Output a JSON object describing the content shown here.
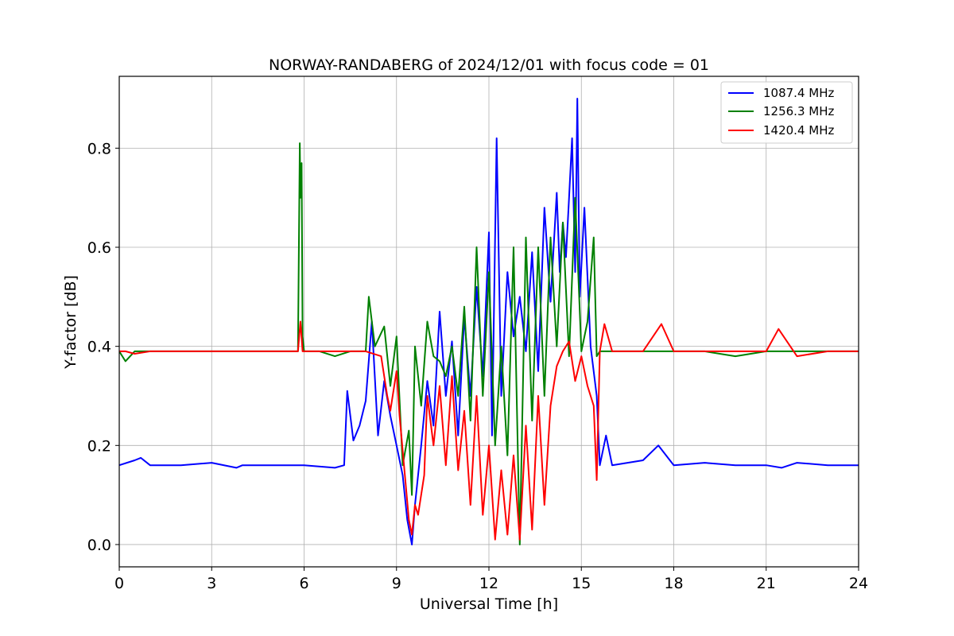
{
  "chart_data": {
    "type": "line",
    "title": "NORWAY-RANDABERG of 2024/12/01 with focus code = 01",
    "xlabel": "Universal Time [h]",
    "ylabel": "Y-factor [dB]",
    "xlim": [
      0,
      24
    ],
    "ylim": [
      -0.045,
      0.945
    ],
    "xticks": [
      0,
      3,
      6,
      9,
      12,
      15,
      18,
      21,
      24
    ],
    "xtick_labels": [
      "0",
      "3",
      "6",
      "9",
      "12",
      "15",
      "18",
      "21",
      "24"
    ],
    "yticks": [
      0.0,
      0.2,
      0.4,
      0.6,
      0.8
    ],
    "ytick_labels": [
      "0.0",
      "0.2",
      "0.4",
      "0.6",
      "0.8"
    ],
    "grid": true,
    "legend_position": "top-right",
    "series": [
      {
        "name": "1087.4 MHz",
        "color": "#0000ff",
        "x": [
          0,
          0.5,
          0.7,
          1,
          2,
          3,
          3.8,
          4,
          5,
          6,
          7,
          7.3,
          7.4,
          7.6,
          7.8,
          8.0,
          8.2,
          8.4,
          8.6,
          8.8,
          9.0,
          9.2,
          9.35,
          9.5,
          9.6,
          9.8,
          10.0,
          10.2,
          10.4,
          10.6,
          10.8,
          11.0,
          11.2,
          11.4,
          11.6,
          11.8,
          12.0,
          12.1,
          12.25,
          12.4,
          12.6,
          12.8,
          13.0,
          13.2,
          13.4,
          13.6,
          13.8,
          14.0,
          14.2,
          14.3,
          14.4,
          14.5,
          14.6,
          14.7,
          14.8,
          14.87,
          14.95,
          15.1,
          15.3,
          15.5,
          15.6,
          15.8,
          16.0,
          17.0,
          17.5,
          18.0,
          19.0,
          20.0,
          21.0,
          21.5,
          22.0,
          23.0,
          24.0
        ],
        "y": [
          0.16,
          0.17,
          0.175,
          0.16,
          0.16,
          0.165,
          0.155,
          0.16,
          0.16,
          0.16,
          0.155,
          0.16,
          0.31,
          0.21,
          0.24,
          0.29,
          0.45,
          0.22,
          0.33,
          0.26,
          0.2,
          0.14,
          0.05,
          0.0,
          0.08,
          0.2,
          0.33,
          0.24,
          0.47,
          0.3,
          0.41,
          0.22,
          0.46,
          0.3,
          0.52,
          0.34,
          0.63,
          0.22,
          0.82,
          0.3,
          0.55,
          0.42,
          0.5,
          0.39,
          0.59,
          0.35,
          0.68,
          0.49,
          0.71,
          0.55,
          0.65,
          0.58,
          0.7,
          0.82,
          0.55,
          0.9,
          0.5,
          0.68,
          0.4,
          0.3,
          0.16,
          0.22,
          0.16,
          0.17,
          0.2,
          0.16,
          0.165,
          0.16,
          0.16,
          0.155,
          0.165,
          0.16,
          0.16
        ]
      },
      {
        "name": "1256.3 MHz",
        "color": "#008000",
        "x": [
          0,
          0.2,
          0.5,
          1,
          2,
          3,
          4,
          5,
          5.8,
          5.86,
          5.88,
          5.92,
          5.95,
          6.0,
          6.5,
          7.0,
          7.5,
          8.0,
          8.1,
          8.3,
          8.6,
          8.8,
          9.0,
          9.2,
          9.4,
          9.5,
          9.6,
          9.8,
          10.0,
          10.2,
          10.4,
          10.6,
          10.8,
          11.0,
          11.2,
          11.4,
          11.6,
          11.8,
          12.0,
          12.2,
          12.4,
          12.6,
          12.8,
          13.0,
          13.2,
          13.4,
          13.6,
          13.8,
          14.0,
          14.2,
          14.4,
          14.6,
          14.8,
          15.0,
          15.2,
          15.4,
          15.5,
          15.6,
          16.0,
          17.0,
          18.0,
          19.0,
          20.0,
          21.0,
          22.0,
          23.0,
          24.0
        ],
        "y": [
          0.39,
          0.37,
          0.39,
          0.39,
          0.39,
          0.39,
          0.39,
          0.39,
          0.39,
          0.81,
          0.7,
          0.77,
          0.42,
          0.39,
          0.39,
          0.38,
          0.39,
          0.39,
          0.5,
          0.4,
          0.44,
          0.32,
          0.42,
          0.16,
          0.23,
          0.1,
          0.4,
          0.28,
          0.45,
          0.38,
          0.37,
          0.34,
          0.4,
          0.3,
          0.48,
          0.25,
          0.6,
          0.3,
          0.55,
          0.2,
          0.4,
          0.18,
          0.6,
          0.0,
          0.62,
          0.25,
          0.6,
          0.3,
          0.62,
          0.4,
          0.65,
          0.38,
          0.7,
          0.39,
          0.45,
          0.62,
          0.38,
          0.39,
          0.39,
          0.39,
          0.39,
          0.39,
          0.38,
          0.39,
          0.39,
          0.39,
          0.39
        ]
      },
      {
        "name": "1420.4 MHz",
        "color": "#ff0000",
        "x": [
          0,
          0.2,
          0.5,
          1,
          2,
          3,
          4,
          5,
          5.8,
          5.88,
          5.95,
          6.0,
          6.5,
          7.0,
          7.5,
          8.0,
          8.5,
          8.7,
          8.8,
          9.0,
          9.1,
          9.3,
          9.4,
          9.5,
          9.6,
          9.7,
          9.9,
          10.0,
          10.2,
          10.4,
          10.6,
          10.8,
          11.0,
          11.2,
          11.4,
          11.6,
          11.8,
          12.0,
          12.2,
          12.4,
          12.6,
          12.8,
          13.0,
          13.2,
          13.4,
          13.6,
          13.8,
          14.0,
          14.2,
          14.4,
          14.6,
          14.8,
          15.0,
          15.2,
          15.4,
          15.5,
          15.6,
          15.75,
          16.0,
          17.0,
          17.6,
          18.0,
          19.0,
          20.0,
          21.0,
          21.4,
          22.0,
          23.0,
          24.0
        ],
        "y": [
          0.39,
          0.39,
          0.385,
          0.39,
          0.39,
          0.39,
          0.39,
          0.39,
          0.39,
          0.45,
          0.39,
          0.39,
          0.39,
          0.39,
          0.39,
          0.39,
          0.38,
          0.3,
          0.27,
          0.35,
          0.26,
          0.12,
          0.05,
          0.02,
          0.08,
          0.06,
          0.14,
          0.3,
          0.2,
          0.32,
          0.16,
          0.34,
          0.15,
          0.27,
          0.08,
          0.3,
          0.06,
          0.2,
          0.01,
          0.15,
          0.02,
          0.18,
          0.01,
          0.24,
          0.03,
          0.3,
          0.08,
          0.28,
          0.36,
          0.39,
          0.41,
          0.33,
          0.38,
          0.32,
          0.28,
          0.13,
          0.39,
          0.445,
          0.39,
          0.39,
          0.445,
          0.39,
          0.39,
          0.39,
          0.39,
          0.435,
          0.38,
          0.39,
          0.39
        ]
      }
    ]
  }
}
